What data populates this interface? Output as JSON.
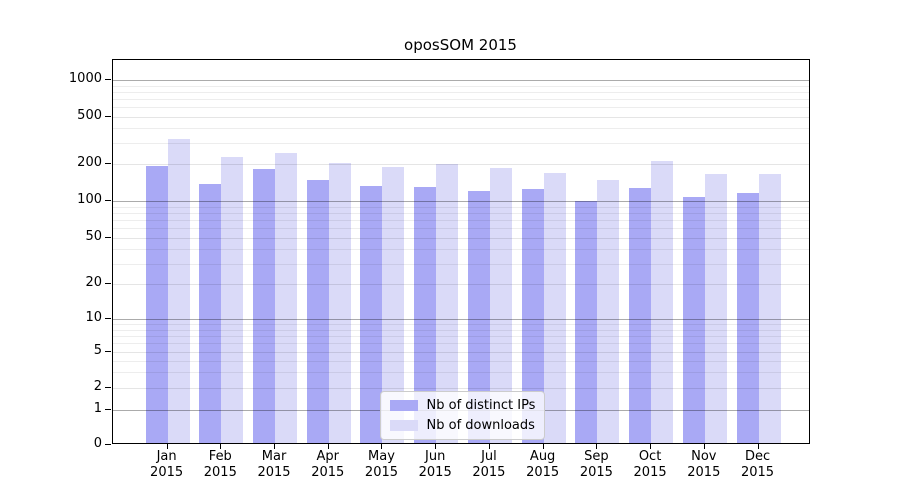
{
  "chart_data": {
    "type": "bar",
    "title": "oposSOM 2015",
    "categories": [
      "Jan 2015",
      "Feb 2015",
      "Mar 2015",
      "Apr 2015",
      "May 2015",
      "Jun 2015",
      "Jul 2015",
      "Aug 2015",
      "Sep 2015",
      "Oct 2015",
      "Nov 2015",
      "Dec 2015"
    ],
    "series": [
      {
        "name": "Nb of distinct IPs",
        "color": "#a9a9f5",
        "values": [
          185,
          132,
          176,
          142,
          128,
          126,
          117,
          120,
          96,
          124,
          104,
          111
        ]
      },
      {
        "name": "Nb of downloads",
        "color": "#dadaf8",
        "values": [
          312,
          220,
          237,
          198,
          183,
          195,
          178,
          162,
          143,
          205,
          160,
          160
        ]
      }
    ],
    "y_ticks": [
      0,
      1,
      2,
      5,
      10,
      20,
      50,
      100,
      200,
      500,
      1000
    ],
    "y_scale": "log-like",
    "ylim": [
      0,
      1800
    ],
    "grid": "horizontal, dark lines at powers of ten, light minor lines",
    "legend_position": "inside plot, lower center",
    "legend_labels": [
      "Nb of distinct IPs",
      "Nb of downloads"
    ]
  },
  "colors": {
    "background": "#ffffff",
    "axis": "#000000",
    "bar_distinct_ips": "#a9a9f5",
    "bar_downloads": "#dadaf8",
    "grid_major": "#a8a8a8",
    "grid_minor": "#e8e8e8",
    "legend_border": "#cccccc"
  }
}
